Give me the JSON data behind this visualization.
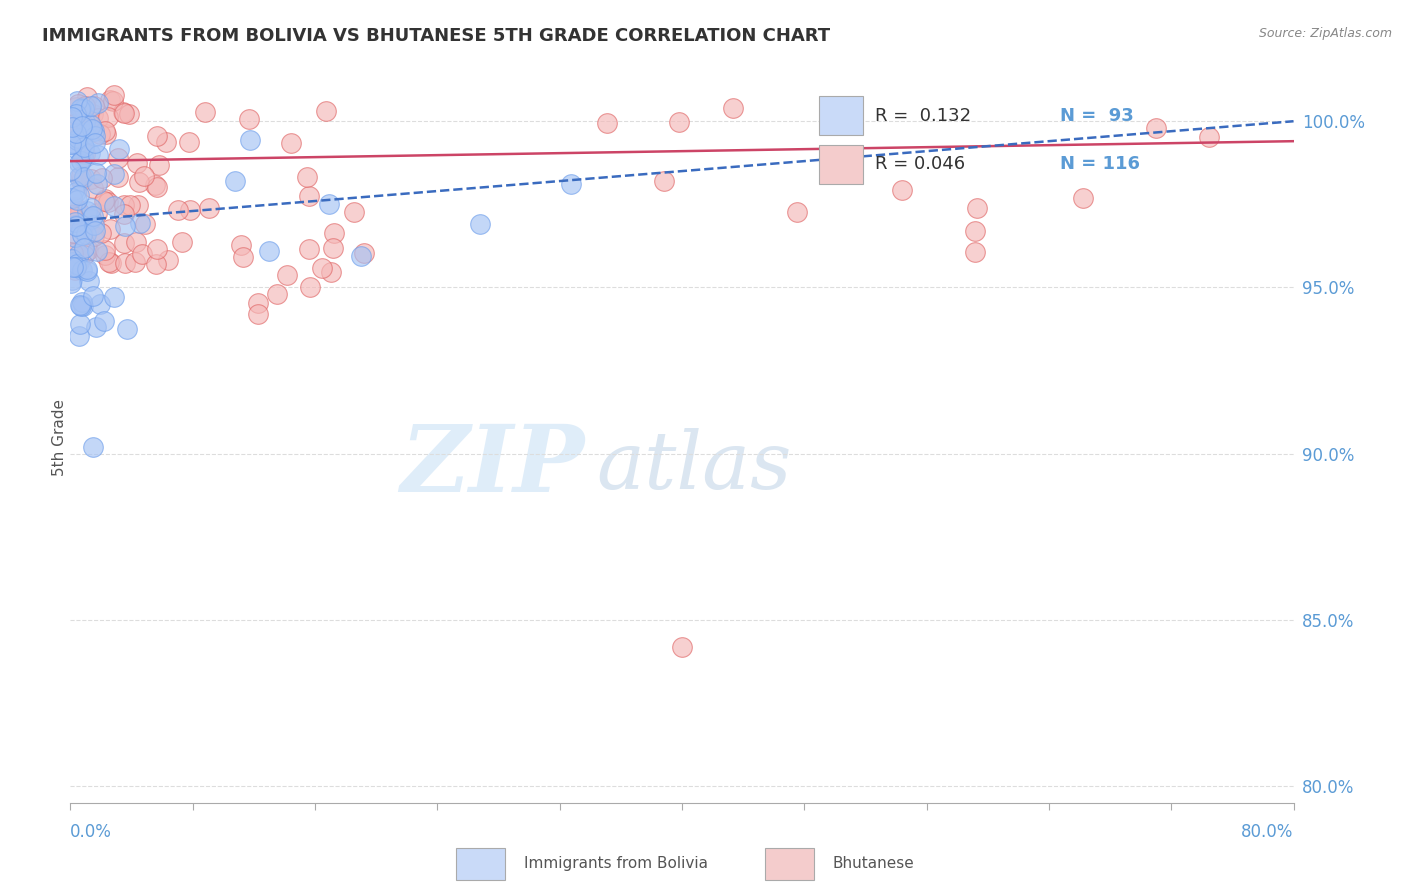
{
  "title": "IMMIGRANTS FROM BOLIVIA VS BHUTANESE 5TH GRADE CORRELATION CHART",
  "source": "Source: ZipAtlas.com",
  "ylabel": "5th Grade",
  "xlim": [
    0.0,
    80.0
  ],
  "ylim": [
    79.5,
    101.5
  ],
  "yticks": [
    80.0,
    85.0,
    90.0,
    95.0,
    100.0
  ],
  "ytick_labels": [
    "80.0%",
    "85.0%",
    "90.0%",
    "95.0%",
    "100.0%"
  ],
  "series_bolivia": {
    "label": "Immigrants from Bolivia",
    "color": "#a4c2f4",
    "edge_color": "#6d9eeb",
    "R": 0.132,
    "N": 93,
    "trend_color": "#3a6bbf",
    "trend_style": "--"
  },
  "series_bhutanese": {
    "label": "Bhutanese",
    "color": "#f4b8b8",
    "edge_color": "#e06666",
    "R": 0.046,
    "N": 116,
    "trend_color": "#cc4466",
    "trend_style": "-"
  },
  "legend_box_color_bolivia": "#c9daf8",
  "legend_box_color_bhutanese": "#f4cccc",
  "watermark_zip": "ZIP",
  "watermark_atlas": "atlas",
  "watermark_color_zip": "#c5dff5",
  "watermark_color_atlas": "#b0c8e0",
  "grid_color": "#dddddd",
  "grid_style": "--"
}
